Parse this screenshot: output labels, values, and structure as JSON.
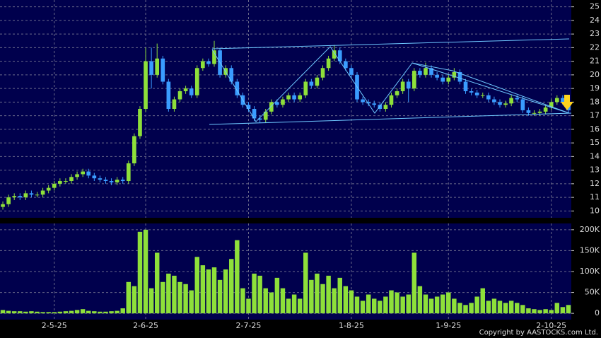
{
  "chart_data": [
    {
      "type": "candlestick",
      "categories": [
        null,
        null,
        null,
        null,
        null,
        null,
        null,
        null,
        null,
        "2-5-25",
        null,
        null,
        null,
        null,
        null,
        null,
        null,
        null,
        null,
        null,
        null,
        null,
        null,
        null,
        null,
        "2-6-25",
        null,
        null,
        null,
        null,
        null,
        null,
        null,
        null,
        null,
        null,
        null,
        null,
        null,
        null,
        null,
        null,
        null,
        "2-7-25",
        null,
        null,
        null,
        null,
        null,
        null,
        null,
        null,
        null,
        null,
        null,
        null,
        null,
        null,
        null,
        null,
        null,
        "1-8-25",
        null,
        null,
        null,
        null,
        null,
        null,
        null,
        null,
        null,
        null,
        null,
        null,
        null,
        null,
        null,
        null,
        "1-9-25",
        null,
        null,
        null,
        null,
        null,
        null,
        null,
        null,
        null,
        null,
        null,
        null,
        null,
        null,
        null,
        null,
        null,
        "2-10-25",
        null,
        null,
        null
      ],
      "open": [
        10.3,
        10.5,
        11.0,
        11.1,
        11.0,
        11.3,
        11.2,
        11.2,
        11.5,
        11.7,
        12.0,
        12.2,
        12.2,
        12.5,
        12.7,
        12.9,
        12.6,
        12.4,
        12.3,
        12.2,
        12.1,
        12.3,
        12.2,
        13.5,
        15.5,
        17.5,
        21.0,
        20.0,
        21.2,
        19.5,
        17.5,
        18.2,
        18.8,
        19.0,
        18.5,
        20.5,
        21.0,
        20.8,
        21.8,
        20.0,
        20.5,
        19.5,
        18.5,
        17.8,
        17.5,
        16.8,
        16.7,
        17.3,
        18.0,
        17.8,
        18.2,
        18.5,
        18.2,
        18.5,
        19.5,
        19.2,
        19.8,
        20.5,
        21.2,
        21.8,
        21.0,
        20.5,
        20.0,
        18.2,
        18.0,
        17.9,
        17.8,
        17.5,
        17.8,
        18.5,
        18.8,
        19.5,
        19.0,
        20.3,
        20.0,
        20.5,
        20.0,
        19.8,
        19.5,
        19.8,
        20.2,
        19.5,
        18.8,
        18.7,
        18.5,
        18.5,
        18.2,
        18.0,
        17.8,
        17.9,
        18.3,
        18.2,
        17.4,
        17.2,
        17.2,
        17.3,
        17.6,
        18.0,
        18.3,
        18.0
      ],
      "high": [
        10.7,
        11.2,
        11.3,
        11.3,
        11.5,
        11.5,
        11.4,
        11.7,
        11.9,
        12.2,
        12.4,
        12.4,
        12.7,
        12.9,
        13.1,
        13.1,
        12.8,
        12.6,
        12.5,
        12.4,
        12.5,
        12.5,
        13.7,
        15.7,
        17.7,
        22.0,
        22.0,
        22.3,
        21.4,
        19.7,
        18.4,
        19.0,
        19.2,
        19.2,
        20.7,
        21.2,
        21.2,
        22.5,
        22.0,
        20.7,
        20.7,
        19.7,
        18.7,
        18.0,
        17.7,
        17.0,
        17.5,
        18.2,
        18.2,
        18.4,
        18.7,
        18.7,
        18.7,
        19.7,
        19.7,
        20.0,
        20.7,
        21.4,
        22.2,
        22.0,
        21.2,
        20.7,
        20.2,
        18.4,
        18.2,
        18.1,
        18.0,
        18.0,
        18.7,
        19.0,
        19.7,
        19.7,
        20.5,
        20.5,
        20.9,
        20.7,
        20.2,
        20.0,
        20.0,
        20.5,
        20.4,
        19.7,
        19.0,
        18.9,
        18.7,
        18.7,
        18.4,
        18.2,
        18.1,
        18.5,
        18.5,
        18.4,
        17.6,
        17.4,
        17.5,
        17.8,
        18.2,
        18.5,
        18.5,
        18.2
      ],
      "low": [
        10.1,
        10.3,
        10.8,
        10.8,
        10.8,
        11.0,
        11.0,
        11.0,
        11.3,
        11.5,
        11.8,
        12.0,
        12.0,
        12.3,
        12.5,
        12.4,
        12.2,
        12.1,
        12.0,
        11.9,
        11.9,
        12.0,
        12.0,
        13.3,
        15.3,
        17.3,
        19.0,
        19.8,
        19.3,
        17.3,
        17.3,
        18.0,
        18.6,
        18.3,
        18.3,
        20.3,
        20.6,
        20.6,
        19.8,
        19.8,
        19.3,
        18.3,
        17.6,
        17.3,
        16.6,
        16.5,
        16.5,
        17.1,
        17.6,
        17.6,
        18.0,
        18.0,
        18.0,
        18.3,
        19.0,
        19.0,
        19.6,
        20.3,
        21.0,
        20.8,
        20.3,
        19.8,
        18.0,
        17.8,
        17.7,
        17.6,
        17.3,
        17.3,
        17.6,
        18.3,
        18.6,
        18.0,
        18.8,
        19.8,
        19.8,
        19.8,
        19.6,
        19.3,
        19.3,
        19.6,
        19.3,
        18.6,
        18.5,
        18.3,
        18.3,
        18.0,
        17.8,
        17.6,
        17.6,
        17.7,
        18.0,
        17.2,
        17.0,
        17.0,
        17.0,
        17.1,
        17.4,
        17.8,
        17.8,
        17.2
      ],
      "close": [
        10.5,
        11.0,
        11.1,
        11.0,
        11.3,
        11.2,
        11.2,
        11.5,
        11.7,
        12.0,
        12.2,
        12.2,
        12.5,
        12.7,
        12.9,
        12.6,
        12.4,
        12.3,
        12.2,
        12.1,
        12.3,
        12.2,
        13.5,
        15.5,
        17.5,
        21.0,
        20.0,
        21.2,
        19.5,
        17.5,
        18.2,
        18.8,
        19.0,
        18.5,
        20.5,
        21.0,
        20.8,
        21.8,
        20.0,
        20.5,
        19.5,
        18.5,
        17.8,
        17.5,
        16.8,
        16.7,
        17.3,
        18.0,
        17.8,
        18.2,
        18.5,
        18.2,
        18.5,
        19.5,
        19.2,
        19.8,
        20.5,
        21.2,
        21.8,
        21.0,
        20.5,
        20.0,
        18.2,
        18.0,
        17.9,
        17.8,
        17.5,
        17.8,
        18.5,
        18.8,
        19.5,
        19.0,
        20.3,
        20.0,
        20.5,
        20.0,
        19.8,
        19.5,
        19.8,
        20.2,
        19.5,
        18.8,
        18.7,
        18.5,
        18.5,
        18.2,
        18.0,
        17.8,
        17.9,
        18.3,
        18.2,
        17.4,
        17.2,
        17.2,
        17.3,
        17.6,
        18.0,
        18.3,
        18.0,
        17.4
      ],
      "up_color": "#8ee03a",
      "down_color": "#3a9cff",
      "ylim": [
        9.5,
        25.5
      ],
      "yticks": [
        10,
        11,
        12,
        13,
        14,
        15,
        16,
        17,
        18,
        19,
        20,
        21,
        22,
        23,
        24,
        25
      ],
      "grid": true
    },
    {
      "type": "bar",
      "values": [
        8000,
        6000,
        5000,
        5000,
        4000,
        5000,
        4000,
        3000,
        3000,
        3000,
        4000,
        5000,
        6000,
        8000,
        10000,
        6000,
        5000,
        4000,
        4000,
        5000,
        6000,
        12000,
        75000,
        65000,
        195000,
        200000,
        60000,
        145000,
        75000,
        95000,
        90000,
        75000,
        70000,
        55000,
        135000,
        115000,
        105000,
        110000,
        80000,
        105000,
        130000,
        175000,
        60000,
        35000,
        95000,
        90000,
        60000,
        50000,
        85000,
        60000,
        35000,
        45000,
        35000,
        145000,
        80000,
        95000,
        70000,
        90000,
        60000,
        85000,
        65000,
        55000,
        40000,
        30000,
        45000,
        35000,
        30000,
        40000,
        55000,
        50000,
        40000,
        45000,
        145000,
        65000,
        45000,
        35000,
        40000,
        45000,
        50000,
        35000,
        25000,
        20000,
        25000,
        40000,
        60000,
        30000,
        35000,
        30000,
        25000,
        30000,
        25000,
        20000,
        12000,
        10000,
        8000,
        10000,
        8000,
        25000,
        15000,
        20000
      ],
      "color": "#8ee03a",
      "ylim": [
        -15000,
        215000
      ],
      "yticks": [
        0,
        {
          "value": 50000,
          "label": "50K"
        },
        {
          "value": 100000,
          "label": "100K"
        },
        {
          "value": 150000,
          "label": "150K"
        },
        {
          "value": 200000,
          "label": "200K"
        }
      ],
      "grid": true
    }
  ],
  "copyright": "Copyright by AASTOCKS.com Ltd."
}
